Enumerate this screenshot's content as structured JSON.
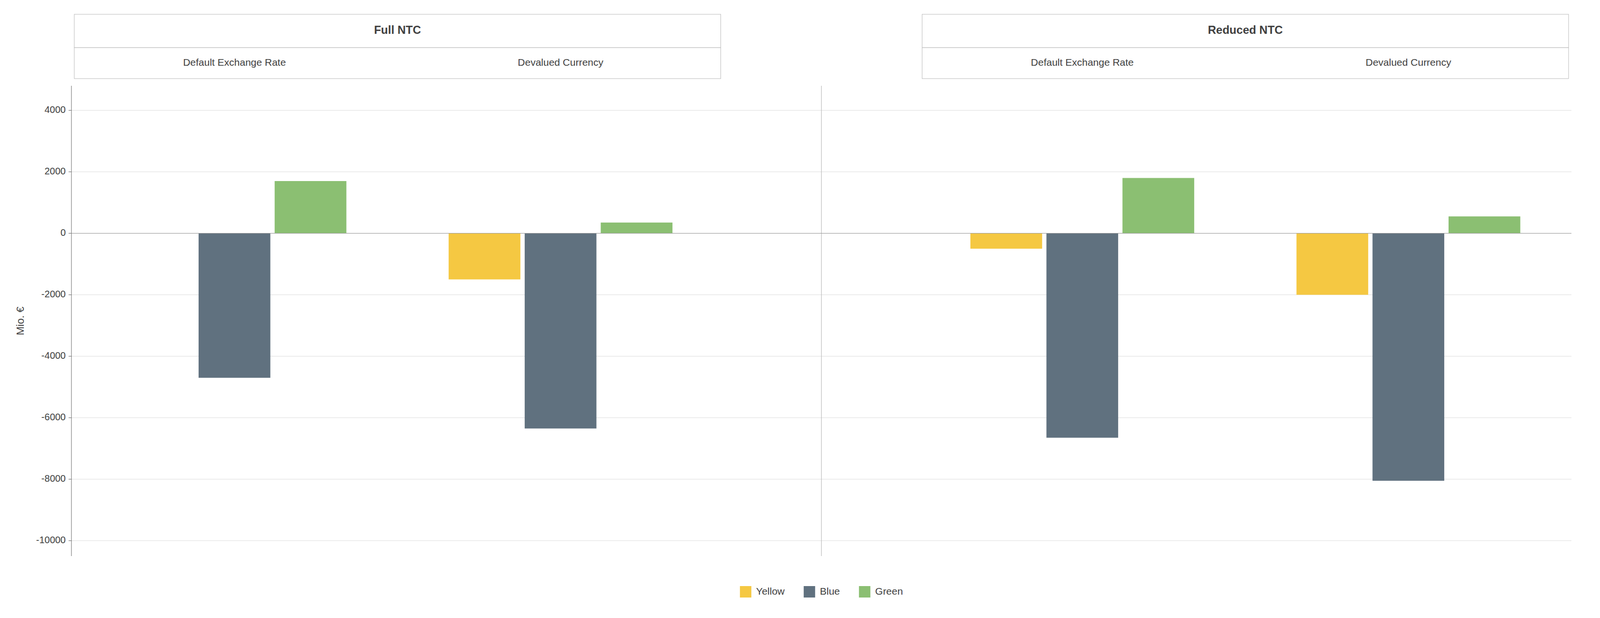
{
  "chart_data": {
    "type": "bar",
    "categories": [
      "Default Exchange Rate",
      "Devalued Currency",
      "Default Exchange Rate",
      "Devalued Currency"
    ],
    "parents": [
      "Full NTC",
      "Full NTC",
      "Reduced NTC",
      "Reduced NTC"
    ],
    "ylabel": "Mio. €",
    "series": [
      {
        "name": "Yellow",
        "color": "#F5C842",
        "values": [
          0,
          -1500,
          -500,
          -2000
        ]
      },
      {
        "name": "Blue",
        "color": "#60717F",
        "values": [
          -4700,
          -6350,
          -6650,
          -8050
        ]
      },
      {
        "name": "Green",
        "color": "#8BBF72",
        "values": [
          1700,
          350,
          1800,
          550
        ]
      }
    ],
    "ylim": [
      -10500,
      4800
    ],
    "yticks": [
      4000,
      2000,
      0,
      -2000,
      -4000,
      -6000,
      -8000,
      -10000
    ],
    "grid": true,
    "legend": "bottom"
  }
}
